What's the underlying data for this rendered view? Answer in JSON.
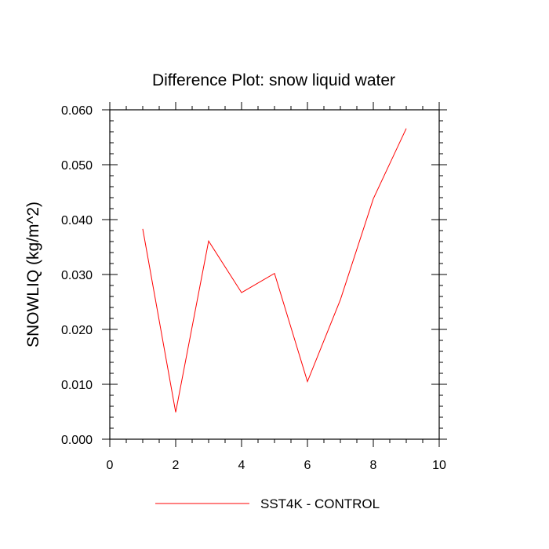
{
  "chart_data": {
    "type": "line",
    "title": "Difference Plot: snow liquid water",
    "xlabel": "",
    "ylabel": "SNOWLIQ  (kg/m^2)",
    "xlim": [
      0,
      10
    ],
    "ylim": [
      0.0,
      0.06
    ],
    "x_ticks": [
      "0",
      "2",
      "4",
      "6",
      "8",
      "10"
    ],
    "y_ticks": [
      "0.000",
      "0.010",
      "0.020",
      "0.030",
      "0.040",
      "0.050",
      "0.060"
    ],
    "grid": false,
    "legend_position": "bottom-center",
    "series": [
      {
        "name": "SST4K - CONTROL",
        "color": "#ff0000",
        "x": [
          1,
          2,
          3,
          4,
          5,
          6,
          7,
          8,
          9
        ],
        "values": [
          0.0383,
          0.0049,
          0.0361,
          0.0267,
          0.0302,
          0.0105,
          0.0254,
          0.0438,
          0.0566
        ]
      }
    ]
  }
}
